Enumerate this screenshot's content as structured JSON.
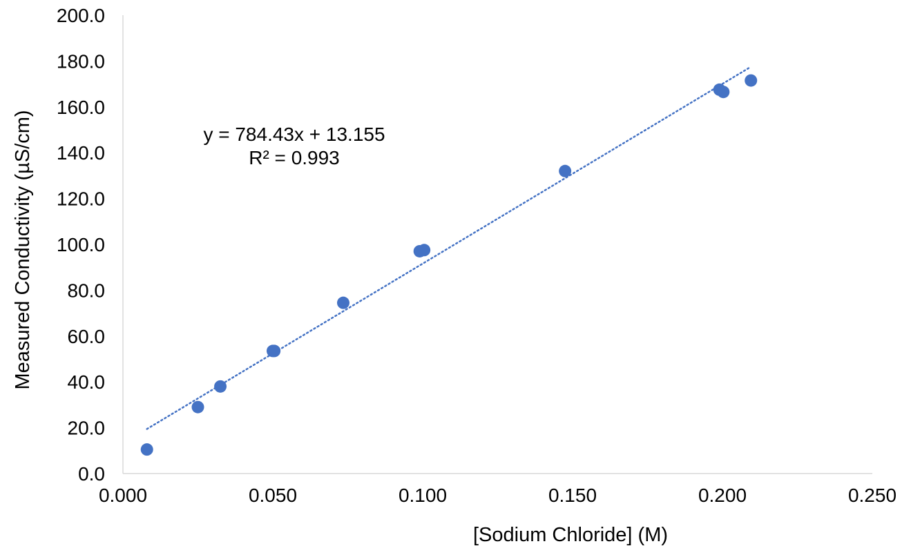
{
  "chart_data": {
    "type": "scatter",
    "title": "",
    "xlabel": "[Sodium Chloride] (M)",
    "ylabel": "Measured Conductivity (µS/cm)",
    "xlim": [
      0.0,
      0.25
    ],
    "ylim": [
      0.0,
      200.0
    ],
    "x_ticks": [
      "0.000",
      "0.050",
      "0.100",
      "0.150",
      "0.200",
      "0.250"
    ],
    "y_ticks": [
      "0.0",
      "20.0",
      "40.0",
      "60.0",
      "80.0",
      "100.0",
      "120.0",
      "140.0",
      "160.0",
      "180.0",
      "200.0"
    ],
    "x_tick_values": [
      0.0,
      0.05,
      0.1,
      0.15,
      0.2,
      0.25
    ],
    "y_tick_values": [
      0,
      20,
      40,
      60,
      80,
      100,
      120,
      140,
      160,
      180,
      200
    ],
    "grid": false,
    "legend": "none",
    "series": [
      {
        "x": [
          0.008,
          0.025,
          0.0325,
          0.05,
          0.0505,
          0.0735,
          0.099,
          0.1005,
          0.1475,
          0.199,
          0.2003,
          0.2095
        ],
        "y": [
          10.5,
          29.0,
          38.0,
          53.5,
          53.5,
          74.5,
          97.0,
          97.5,
          132.0,
          167.5,
          166.5,
          171.5
        ]
      }
    ],
    "trendline": {
      "type": "linear",
      "slope": 784.43,
      "intercept": 13.155,
      "x_range": [
        0.008,
        0.209
      ],
      "equation_text": "y = 784.43x + 13.155",
      "r2_text": "R² = 0.993"
    },
    "colors": {
      "marker": "#4472C4",
      "trendline": "#4472C4",
      "axis": "#d9d9d9"
    }
  }
}
